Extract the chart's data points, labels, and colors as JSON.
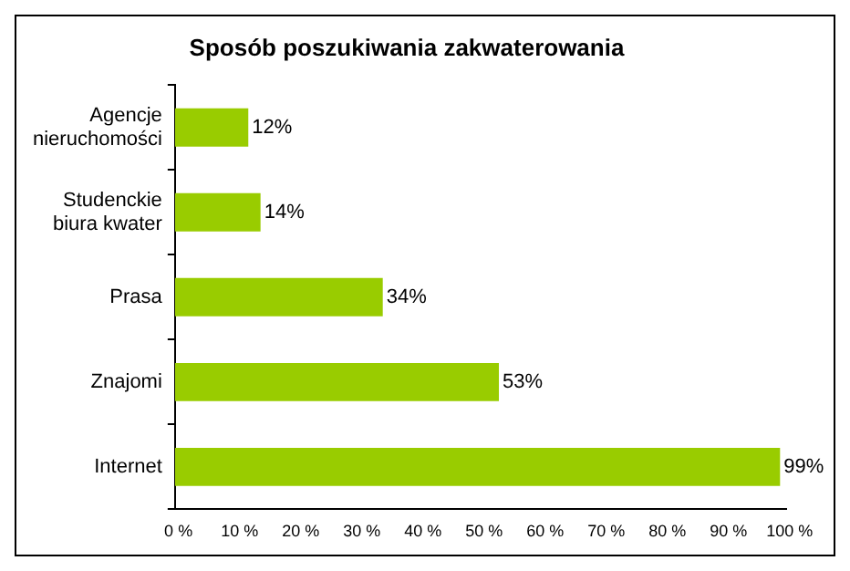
{
  "chart_data": {
    "type": "bar",
    "orientation": "horizontal",
    "title": "Sposób poszukiwania zakwaterowania",
    "categories": [
      "Agencje nieruchomości",
      "Studenckie biura kwater",
      "Prasa",
      "Znajomi",
      "Internet"
    ],
    "values": [
      12,
      14,
      34,
      53,
      99
    ],
    "color": "#99cc00",
    "value_labels": [
      "12%",
      "14%",
      "34%",
      "53%",
      "99%"
    ],
    "xlim": [
      0,
      100
    ],
    "xticks": [
      {
        "value": 0,
        "label": "0 %"
      },
      {
        "value": 10,
        "label": "10 %"
      },
      {
        "value": 20,
        "label": "20 %"
      },
      {
        "value": 30,
        "label": "30 %"
      },
      {
        "value": 40,
        "label": "40 %"
      },
      {
        "value": 50,
        "label": "50 %"
      },
      {
        "value": 60,
        "label": "60 %"
      },
      {
        "value": 70,
        "label": "70 %"
      },
      {
        "value": 80,
        "label": "80 %"
      },
      {
        "value": 90,
        "label": "90 %"
      },
      {
        "value": 100,
        "label": "100 %"
      }
    ],
    "grid": false,
    "legend": false
  }
}
